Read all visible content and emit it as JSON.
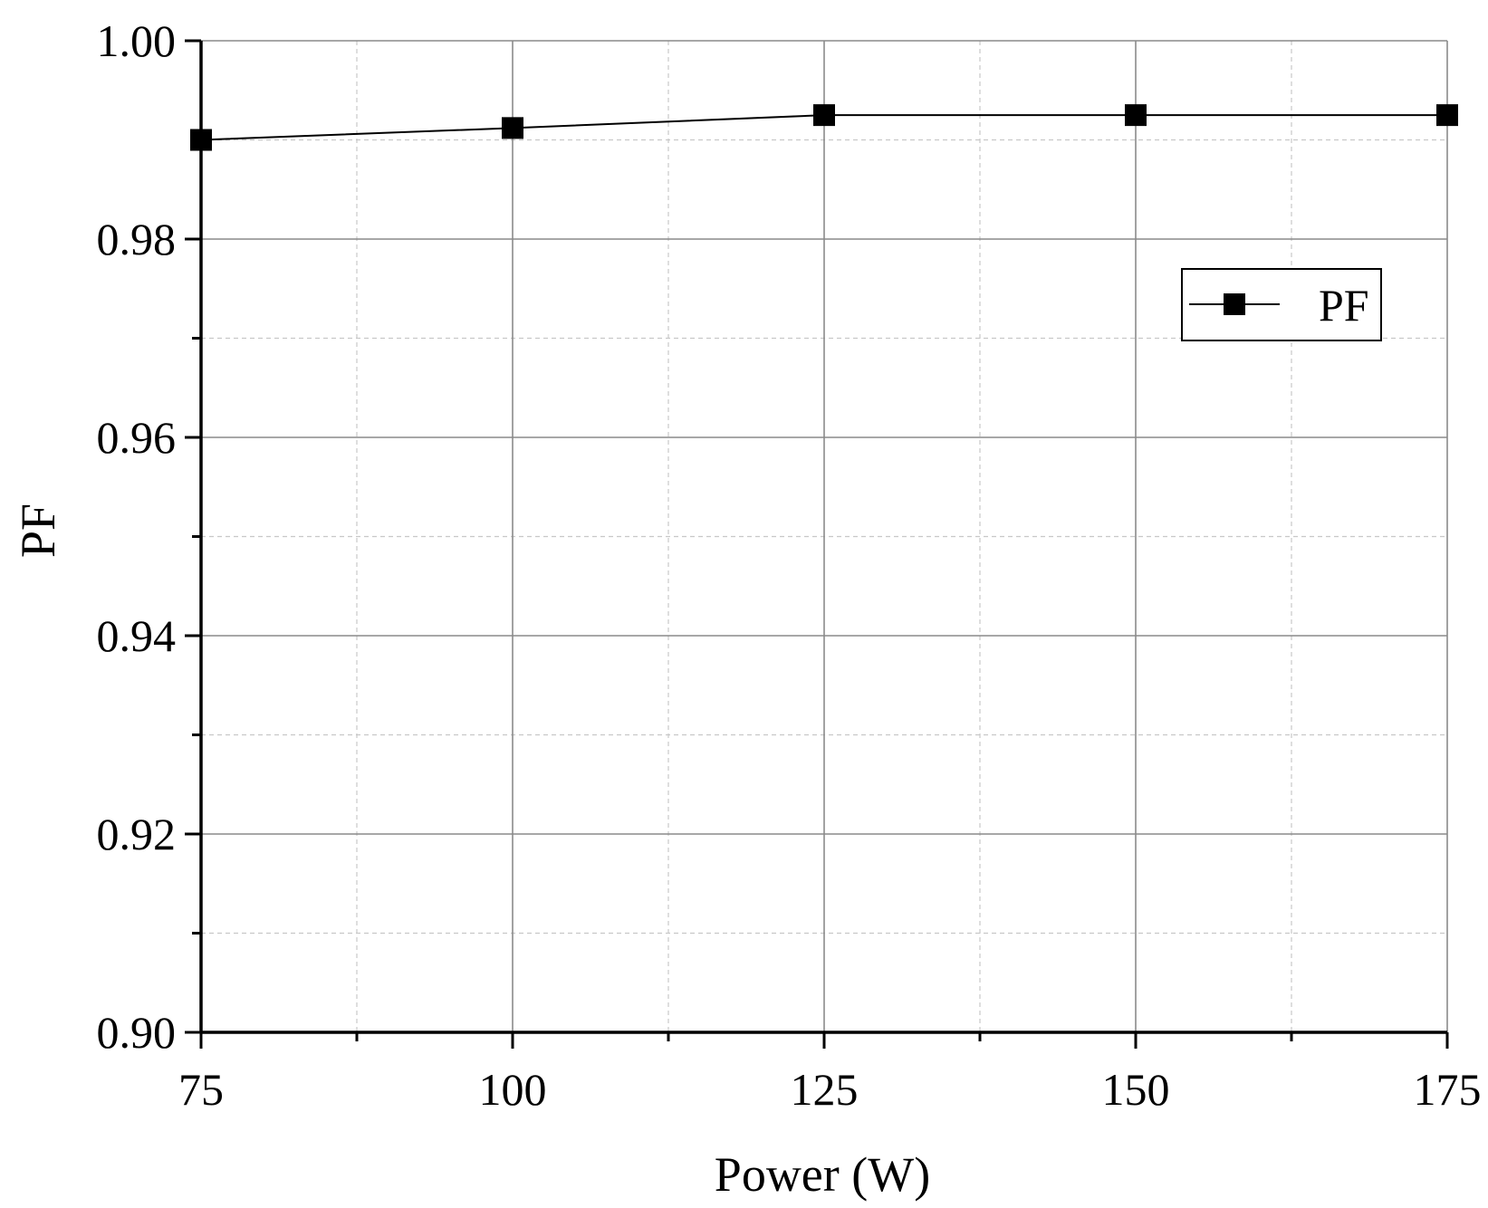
{
  "chart_data": {
    "type": "line",
    "title": "",
    "xlabel": "Power (W)",
    "ylabel": "PF",
    "xlim": [
      75,
      175
    ],
    "ylim": [
      0.9,
      1.0
    ],
    "x_ticks": [
      75,
      100,
      125,
      150,
      175
    ],
    "x_tick_labels": [
      "75",
      "100",
      "125",
      "150",
      "175"
    ],
    "x_minor_ticks": [
      87.5,
      112.5,
      137.5,
      162.5
    ],
    "y_ticks": [
      0.9,
      0.92,
      0.94,
      0.96,
      0.98,
      1.0
    ],
    "y_tick_labels": [
      "0.90",
      "0.92",
      "0.94",
      "0.96",
      "0.98",
      "1.00"
    ],
    "y_minor_ticks": [
      0.91,
      0.93,
      0.95,
      0.97,
      0.99
    ],
    "grid": true,
    "legend_position": "top-right",
    "series": [
      {
        "name": "PF",
        "marker": "square",
        "color": "#000000",
        "x": [
          75,
          100,
          125,
          150,
          175
        ],
        "y": [
          0.99,
          0.9912,
          0.9925,
          0.9925,
          0.9925
        ]
      }
    ]
  }
}
